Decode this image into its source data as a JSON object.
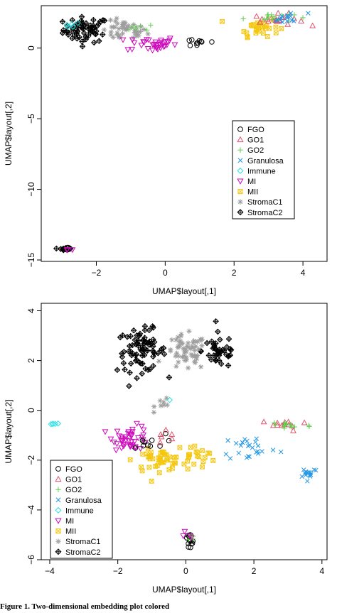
{
  "legend_entries": [
    {
      "name": "FGO",
      "color": "#000000",
      "marker": "circle"
    },
    {
      "name": "GO1",
      "color": "#df536b",
      "marker": "triangle"
    },
    {
      "name": "GO2",
      "color": "#61d04f",
      "marker": "plus"
    },
    {
      "name": "Granulosa",
      "color": "#2297e6",
      "marker": "cross"
    },
    {
      "name": "Immune",
      "color": "#28e2e5",
      "marker": "diamond"
    },
    {
      "name": "MI",
      "color": "#cd0bbc",
      "marker": "triangle-down"
    },
    {
      "name": "MII",
      "color": "#f5c710",
      "marker": "square-x"
    },
    {
      "name": "StromaC1",
      "color": "#9e9e9e",
      "marker": "asterisk"
    },
    {
      "name": "StromaC2",
      "color": "#000000",
      "marker": "diamond-plus"
    }
  ],
  "caption": "Figure 1. Two-dimensional embedding plot colored",
  "chart_data": [
    {
      "type": "scatter",
      "title": "",
      "xlabel": "UMAP$layout[,1]",
      "ylabel": "UMAP$layout[,2]",
      "xlim": [
        -3.6,
        4.7
      ],
      "ylim": [
        -15.1,
        3.0
      ],
      "xticks": [
        -2,
        0,
        2,
        4
      ],
      "yticks": [
        -15,
        -10,
        -5,
        0
      ],
      "legend_position": "right-middle",
      "clusters": [
        {
          "series": "StromaC2",
          "cx": -2.3,
          "cy": 1.3,
          "sx": 0.55,
          "sy": 0.75,
          "n": 60
        },
        {
          "series": "StromaC1",
          "cx": -1.2,
          "cy": 1.2,
          "sx": 0.55,
          "sy": 0.6,
          "n": 45
        },
        {
          "series": "MI",
          "cx": -0.4,
          "cy": 0.3,
          "sx": 0.6,
          "sy": 0.45,
          "n": 35
        },
        {
          "series": "Immune",
          "cx": -2.7,
          "cy": 1.7,
          "sx": 0.25,
          "sy": 0.3,
          "n": 5
        },
        {
          "series": "FGO",
          "cx": 1.0,
          "cy": 0.4,
          "sx": 0.5,
          "sy": 0.3,
          "n": 10
        },
        {
          "series": "GO2",
          "cx": -0.5,
          "cy": 1.5,
          "sx": 0.4,
          "sy": 0.3,
          "n": 6
        },
        {
          "series": "MII",
          "cx": 2.7,
          "cy": 1.5,
          "sx": 0.5,
          "sy": 0.55,
          "n": 30
        },
        {
          "series": "GO1",
          "cx": 3.3,
          "cy": 2.0,
          "sx": 0.6,
          "sy": 0.35,
          "n": 20
        },
        {
          "series": "GO2",
          "cx": 3.0,
          "cy": 2.2,
          "sx": 0.6,
          "sy": 0.3,
          "n": 15
        },
        {
          "series": "Granulosa",
          "cx": 3.6,
          "cy": 2.1,
          "sx": 0.45,
          "sy": 0.35,
          "n": 15
        },
        {
          "series": "StromaC2",
          "cx": -2.9,
          "cy": -14.2,
          "sx": 0.15,
          "sy": 0.08,
          "n": 12
        },
        {
          "series": "FGO",
          "cx": -2.8,
          "cy": -14.2,
          "sx": 0.12,
          "sy": 0.08,
          "n": 5
        },
        {
          "series": "MI",
          "cx": -2.8,
          "cy": -14.3,
          "sx": 0.1,
          "sy": 0.05,
          "n": 3
        }
      ]
    },
    {
      "type": "scatter",
      "title": "",
      "xlabel": "UMAP$layout[,1]",
      "ylabel": "UMAP$layout[,2]",
      "xlim": [
        -4.25,
        4.15
      ],
      "ylim": [
        -6.0,
        4.3
      ],
      "xticks": [
        -4,
        -2,
        0,
        2,
        4
      ],
      "yticks": [
        -6,
        -4,
        -2,
        0,
        2,
        4
      ],
      "legend_position": "bottom-left",
      "clusters": [
        {
          "series": "StromaC2",
          "cx": -1.3,
          "cy": 2.4,
          "sx": 0.6,
          "sy": 0.7,
          "n": 80
        },
        {
          "series": "StromaC2",
          "cx": 1.0,
          "cy": 2.4,
          "sx": 0.45,
          "sy": 0.6,
          "n": 40
        },
        {
          "series": "StromaC1",
          "cx": 0.0,
          "cy": 2.3,
          "sx": 0.5,
          "sy": 0.6,
          "n": 60
        },
        {
          "series": "StromaC1",
          "cx": -0.6,
          "cy": 0.3,
          "sx": 0.25,
          "sy": 0.25,
          "n": 8
        },
        {
          "series": "Immune",
          "cx": -3.9,
          "cy": -0.55,
          "sx": 0.1,
          "sy": 0.05,
          "n": 5
        },
        {
          "series": "Immune",
          "cx": -0.45,
          "cy": 0.4,
          "sx": 0.05,
          "sy": 0.05,
          "n": 1
        },
        {
          "series": "MI",
          "cx": -1.6,
          "cy": -1.1,
          "sx": 0.45,
          "sy": 0.4,
          "n": 45
        },
        {
          "series": "MII",
          "cx": -0.8,
          "cy": -2.0,
          "sx": 0.6,
          "sy": 0.35,
          "n": 45
        },
        {
          "series": "MII",
          "cx": 0.3,
          "cy": -1.8,
          "sx": 0.5,
          "sy": 0.35,
          "n": 20
        },
        {
          "series": "FGO",
          "cx": -1.2,
          "cy": -1.3,
          "sx": 0.5,
          "sy": 0.3,
          "n": 10
        },
        {
          "series": "FGO",
          "cx": 0.1,
          "cy": -5.3,
          "sx": 0.12,
          "sy": 0.3,
          "n": 15
        },
        {
          "series": "GO2",
          "cx": 0.2,
          "cy": -5.2,
          "sx": 0.1,
          "sy": 0.25,
          "n": 5
        },
        {
          "series": "MI",
          "cx": 0.05,
          "cy": -5.0,
          "sx": 0.1,
          "sy": 0.2,
          "n": 4
        },
        {
          "series": "GO1",
          "cx": 2.9,
          "cy": -0.6,
          "sx": 0.6,
          "sy": 0.2,
          "n": 12
        },
        {
          "series": "GO2",
          "cx": 3.0,
          "cy": -0.6,
          "sx": 0.6,
          "sy": 0.2,
          "n": 15
        },
        {
          "series": "Granulosa",
          "cx": 1.9,
          "cy": -1.5,
          "sx": 0.7,
          "sy": 0.45,
          "n": 25
        },
        {
          "series": "Granulosa",
          "cx": 3.6,
          "cy": -2.5,
          "sx": 0.25,
          "sy": 0.2,
          "n": 15
        },
        {
          "series": "GO1",
          "cx": -0.5,
          "cy": -1.0,
          "sx": 0.35,
          "sy": 0.3,
          "n": 6
        }
      ]
    }
  ]
}
